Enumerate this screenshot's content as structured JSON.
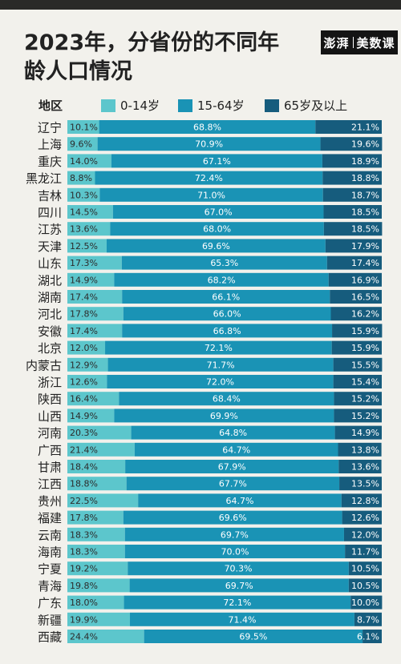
{
  "title": "2023年，分省份的不同年龄人口情况",
  "brand": {
    "left": "澎湃",
    "right": "美数课"
  },
  "colors": {
    "young": "#5cc6cc",
    "working": "#1a93b5",
    "elderly": "#165c7d",
    "background": "#f2f1ec"
  },
  "chart_data": {
    "type": "bar",
    "orientation": "horizontal",
    "stacked": true,
    "region_header": "地区",
    "series": [
      {
        "name": "0-14岁",
        "values": [
          10.1,
          9.6,
          14.0,
          8.8,
          10.3,
          14.5,
          13.6,
          12.5,
          17.3,
          14.9,
          17.4,
          17.8,
          17.4,
          12.0,
          12.9,
          12.6,
          16.4,
          14.9,
          20.3,
          21.4,
          18.4,
          18.8,
          22.5,
          17.8,
          18.3,
          18.3,
          19.2,
          19.8,
          18.0,
          19.9,
          24.4
        ]
      },
      {
        "name": "15-64岁",
        "values": [
          68.8,
          70.9,
          67.1,
          72.4,
          71.0,
          67.0,
          68.0,
          69.6,
          65.3,
          68.2,
          66.1,
          66.0,
          66.8,
          72.1,
          71.7,
          72.0,
          68.4,
          69.9,
          64.8,
          64.7,
          67.9,
          67.7,
          64.7,
          69.6,
          69.7,
          70.0,
          70.3,
          69.7,
          72.1,
          71.4,
          69.5
        ]
      },
      {
        "name": "65岁及以上",
        "values": [
          21.1,
          19.6,
          18.9,
          18.8,
          18.7,
          18.5,
          18.5,
          17.9,
          17.4,
          16.9,
          16.5,
          16.2,
          15.9,
          15.9,
          15.5,
          15.4,
          15.2,
          15.2,
          14.9,
          13.8,
          13.6,
          13.5,
          12.8,
          12.6,
          12.0,
          11.7,
          10.5,
          10.5,
          10.0,
          8.7,
          6.1
        ]
      }
    ],
    "categories": [
      "辽宁",
      "上海",
      "重庆",
      "黑龙江",
      "吉林",
      "四川",
      "江苏",
      "天津",
      "山东",
      "湖北",
      "湖南",
      "河北",
      "安徽",
      "北京",
      "内蒙古",
      "浙江",
      "陕西",
      "山西",
      "河南",
      "广西",
      "甘肃",
      "江西",
      "贵州",
      "福建",
      "云南",
      "海南",
      "宁夏",
      "青海",
      "广东",
      "新疆",
      "西藏"
    ],
    "labels": [
      [
        "10.1%",
        "68.8%",
        "21.1%"
      ],
      [
        "9.6%",
        "70.9%",
        "19.6%"
      ],
      [
        "14.0%",
        "67.1%",
        "18.9%"
      ],
      [
        "8.8%",
        "72.4%",
        "18.8%"
      ],
      [
        "10.3%",
        "71.0%",
        "18.7%"
      ],
      [
        "14.5%",
        "67.0%",
        "18.5%"
      ],
      [
        "13.6%",
        "68.0%",
        "18.5%"
      ],
      [
        "12.5%",
        "69.6%",
        "17.9%"
      ],
      [
        "17.3%",
        "65.3%",
        "17.4%"
      ],
      [
        "14.9%",
        "68.2%",
        "16.9%"
      ],
      [
        "17.4%",
        "66.1%",
        "16.5%"
      ],
      [
        "17.8%",
        "66.0%",
        "16.2%"
      ],
      [
        "17.4%",
        "66.8%",
        "15.9%"
      ],
      [
        "12.0%",
        "72.1%",
        "15.9%"
      ],
      [
        "12.9%",
        "71.7%",
        "15.5%"
      ],
      [
        "12.6%",
        "72.0%",
        "15.4%"
      ],
      [
        "16.4%",
        "68.4%",
        "15.2%"
      ],
      [
        "14.9%",
        "69.9%",
        "15.2%"
      ],
      [
        "20.3%",
        "64.8%",
        "14.9%"
      ],
      [
        "21.4%",
        "64.7%",
        "13.8%"
      ],
      [
        "18.4%",
        "67.9%",
        "13.6%"
      ],
      [
        "18.8%",
        "67.7%",
        "13.5%"
      ],
      [
        "22.5%",
        "64.7%",
        "12.8%"
      ],
      [
        "17.8%",
        "69.6%",
        "12.6%"
      ],
      [
        "18.3%",
        "69.7%",
        "12.0%"
      ],
      [
        "18.3%",
        "70.0%",
        "11.7%"
      ],
      [
        "19.2%",
        "70.3%",
        "10.5%"
      ],
      [
        "19.8%",
        "69.7%",
        "10.5%"
      ],
      [
        "18.0%",
        "72.1%",
        "10.0%"
      ],
      [
        "19.9%",
        "71.4%",
        "8.7%"
      ],
      [
        "24.4%",
        "69.5%",
        "6.1%"
      ]
    ],
    "xlim": [
      0,
      100
    ]
  }
}
